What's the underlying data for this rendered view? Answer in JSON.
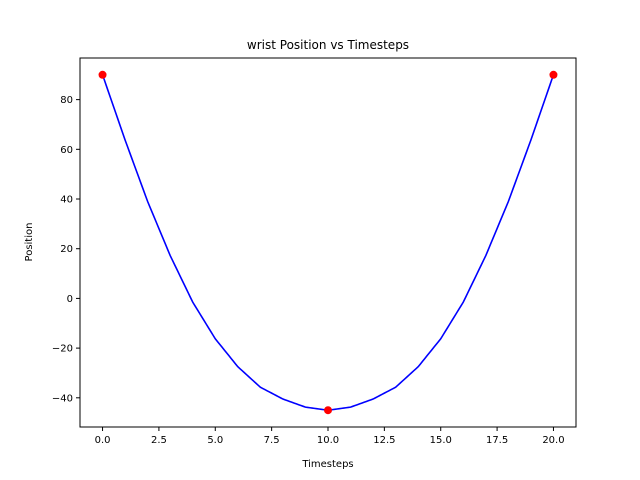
{
  "chart_data": {
    "type": "line",
    "title": "wrist Position vs Timesteps",
    "xlabel": "Timesteps",
    "ylabel": "Position",
    "xlim": [
      -1,
      21
    ],
    "ylim": [
      -51.75,
      96.75
    ],
    "grid": false,
    "legend": "none",
    "x_ticks": [
      0.0,
      2.5,
      5.0,
      7.5,
      10.0,
      12.5,
      15.0,
      17.5,
      20.0
    ],
    "x_tick_labels": [
      "0.0",
      "2.5",
      "5.0",
      "7.5",
      "10.0",
      "12.5",
      "15.0",
      "17.5",
      "20.0"
    ],
    "y_ticks": [
      -40,
      -20,
      0,
      20,
      40,
      60,
      80
    ],
    "y_tick_labels": [
      "−40",
      "−20",
      "0",
      "20",
      "40",
      "60",
      "80"
    ],
    "series": [
      {
        "type": "line",
        "color": "#0000ff",
        "x": [
          0,
          1,
          2,
          3,
          4,
          5,
          6,
          7,
          8,
          9,
          10,
          11,
          12,
          13,
          14,
          15,
          16,
          17,
          18,
          19,
          20
        ],
        "y": [
          90,
          63.75,
          39.0,
          17.25,
          -1.5,
          -16.25,
          -27.5,
          -35.75,
          -40.5,
          -43.75,
          -45,
          -43.75,
          -40.5,
          -35.75,
          -27.5,
          -16.25,
          -1.5,
          17.25,
          39.0,
          63.75,
          90
        ]
      },
      {
        "type": "scatter",
        "color": "#ff0000",
        "x": [
          0,
          10,
          20
        ],
        "y": [
          90,
          -45,
          90
        ]
      }
    ]
  }
}
